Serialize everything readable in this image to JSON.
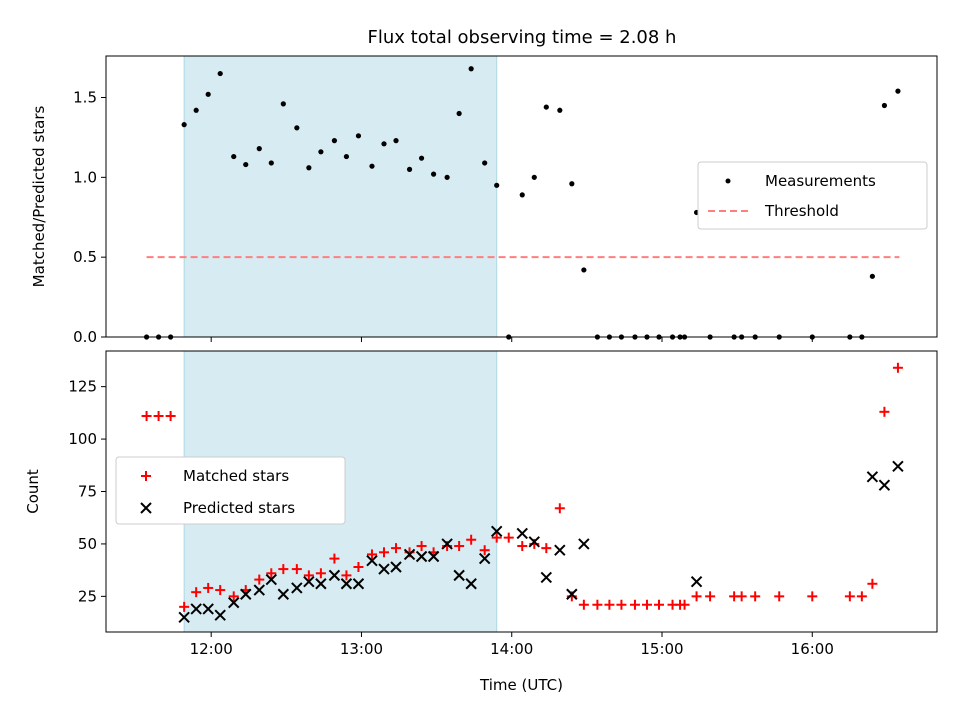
{
  "figure_title": "Flux total observing time = 2.08 h",
  "colors": {
    "shade": "#add8e6",
    "point": "#000000",
    "threshold": "#ff7f7f",
    "matched": "#ff0000",
    "predicted": "#000000"
  },
  "chart_data": [
    {
      "type": "scatter",
      "name": "ratio-panel",
      "title": "Flux total observing time = 2.08 h",
      "xlabel": "",
      "ylabel": "Matched/Predicted stars",
      "xlim": [
        11.3,
        16.83
      ],
      "ylim": [
        0,
        1.76
      ],
      "x_ticks": [
        12,
        13,
        14,
        15,
        16
      ],
      "x_tick_labels_visible": false,
      "y_ticks": [
        0,
        0.5,
        1.0,
        1.5
      ],
      "y_tick_labels": [
        "0.0",
        "0.5",
        "1.0",
        "1.5"
      ],
      "grid": false,
      "legend_position": "center-right",
      "shaded_span": [
        11.82,
        13.9
      ],
      "threshold": {
        "label": "Threshold",
        "y": 0.5,
        "x_range": [
          11.57,
          16.58
        ]
      },
      "series": [
        {
          "name": "Measurements",
          "marker": "dot",
          "x": [
            11.57,
            11.65,
            11.73,
            11.82,
            11.9,
            11.98,
            12.06,
            12.15,
            12.23,
            12.32,
            12.4,
            12.48,
            12.57,
            12.65,
            12.73,
            12.82,
            12.9,
            12.98,
            13.07,
            13.15,
            13.23,
            13.32,
            13.4,
            13.48,
            13.57,
            13.65,
            13.73,
            13.82,
            13.9,
            13.98,
            14.07,
            14.15,
            14.23,
            14.32,
            14.4,
            14.48,
            14.57,
            14.65,
            14.73,
            14.82,
            14.9,
            14.98,
            15.07,
            15.12,
            15.15,
            15.23,
            15.32,
            15.48,
            15.53,
            15.62,
            15.78,
            16.0,
            16.25,
            16.33,
            16.4,
            16.48,
            16.57
          ],
          "y": [
            0,
            0,
            0,
            1.33,
            1.42,
            1.52,
            1.65,
            1.13,
            1.08,
            1.18,
            1.09,
            1.46,
            1.31,
            1.06,
            1.16,
            1.23,
            1.13,
            1.26,
            1.07,
            1.21,
            1.23,
            1.05,
            1.12,
            1.02,
            1.0,
            1.4,
            1.68,
            1.09,
            0.95,
            0,
            0.89,
            1.0,
            1.44,
            1.42,
            0.96,
            0.42,
            0,
            0,
            0,
            0,
            0,
            0,
            0,
            0,
            0,
            0.78,
            0,
            0,
            0,
            0,
            0,
            0,
            0,
            0,
            0.38,
            1.45,
            1.54
          ]
        }
      ]
    },
    {
      "type": "scatter",
      "name": "count-panel",
      "title": "",
      "xlabel": "Time (UTC)",
      "ylabel": "Count",
      "xlim": [
        11.3,
        16.83
      ],
      "ylim": [
        8,
        142
      ],
      "x_ticks": [
        12,
        13,
        14,
        15,
        16
      ],
      "x_tick_labels": [
        "12:00",
        "13:00",
        "14:00",
        "15:00",
        "16:00"
      ],
      "y_ticks": [
        25,
        50,
        75,
        100,
        125
      ],
      "y_tick_labels": [
        "25",
        "50",
        "75",
        "100",
        "125"
      ],
      "grid": false,
      "legend_position": "center-left",
      "shaded_span": [
        11.82,
        13.9
      ],
      "series": [
        {
          "name": "Matched stars",
          "marker": "plus",
          "x": [
            11.57,
            11.65,
            11.73,
            11.82,
            11.9,
            11.98,
            12.06,
            12.15,
            12.23,
            12.32,
            12.4,
            12.48,
            12.57,
            12.65,
            12.73,
            12.82,
            12.9,
            12.98,
            13.07,
            13.15,
            13.23,
            13.32,
            13.4,
            13.48,
            13.57,
            13.65,
            13.73,
            13.82,
            13.9,
            13.98,
            14.07,
            14.15,
            14.23,
            14.32,
            14.4,
            14.48,
            14.57,
            14.65,
            14.73,
            14.82,
            14.9,
            14.98,
            15.07,
            15.12,
            15.15,
            15.23,
            15.32,
            15.48,
            15.53,
            15.62,
            15.78,
            16.0,
            16.25,
            16.33,
            16.4,
            16.48,
            16.57
          ],
          "y": [
            111,
            111,
            111,
            20,
            27,
            29,
            28,
            25,
            28,
            33,
            36,
            38,
            38,
            35,
            36,
            43,
            35,
            39,
            45,
            46,
            48,
            46,
            49,
            46,
            49,
            49,
            52,
            47,
            53,
            53,
            49,
            50,
            48,
            67,
            25,
            21,
            21,
            21,
            21,
            21,
            21,
            21,
            21,
            21,
            21,
            25,
            25,
            25,
            25,
            25,
            25,
            25,
            25,
            25,
            31,
            113,
            134
          ]
        },
        {
          "name": "Predicted stars",
          "marker": "x",
          "x": [
            11.82,
            11.9,
            11.98,
            12.06,
            12.15,
            12.23,
            12.32,
            12.4,
            12.48,
            12.57,
            12.65,
            12.73,
            12.82,
            12.9,
            12.98,
            13.07,
            13.15,
            13.23,
            13.32,
            13.4,
            13.48,
            13.57,
            13.65,
            13.73,
            13.82,
            13.9,
            14.07,
            14.15,
            14.23,
            14.32,
            14.4,
            14.48,
            15.23,
            16.4,
            16.48,
            16.57
          ],
          "y": [
            15,
            19,
            19,
            16,
            22,
            26,
            28,
            33,
            26,
            29,
            32,
            31,
            35,
            31,
            31,
            42,
            38,
            39,
            45,
            44,
            44,
            50,
            35,
            31,
            43,
            56,
            55,
            51,
            34,
            47,
            26,
            50,
            32,
            82,
            78,
            87
          ]
        }
      ]
    }
  ]
}
